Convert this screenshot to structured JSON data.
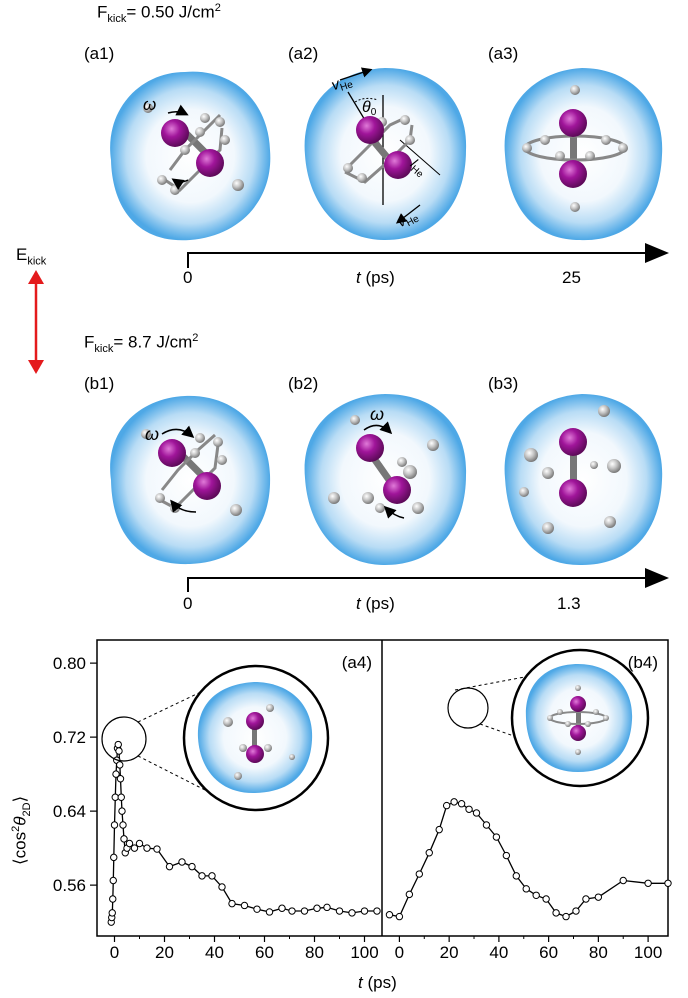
{
  "top_section": {
    "fluence_prefix": "F",
    "fluence_sub": "kick",
    "fluence_value": "= 0.50 J/cm",
    "fluence_sup": "2",
    "panels": [
      "(a1)",
      "(a2)",
      "(a3)"
    ],
    "axis_start": "0",
    "axis_label_t": "t",
    "axis_label_unit": " (ps)",
    "axis_end": "25",
    "a2_labels": {
      "v_he": "v",
      "v_he_sub": "He",
      "theta0": "θ",
      "theta0_sub": "0",
      "l_he": "l",
      "l_he_sub": "He"
    },
    "omega": "ω"
  },
  "energy_arrow": {
    "label": "E",
    "label_sub": "kick"
  },
  "middle_section": {
    "fluence_prefix": "F",
    "fluence_sub": "kick",
    "fluence_value": "= 8.7 J/cm",
    "fluence_sup": "2",
    "panels": [
      "(b1)",
      "(b2)",
      "(b3)"
    ],
    "axis_start": "0",
    "axis_label_t": "t",
    "axis_label_unit": " (ps)",
    "axis_end": "1.3",
    "omega": "ω"
  },
  "colors": {
    "droplet": "#5aaee8",
    "iodine": "#a0159a",
    "helium": "#b8b8b8",
    "axis_arrow": "#000000",
    "energy_arrow": "#e41a1c"
  },
  "chart_data": {
    "type": "scatter",
    "ylabel_prefix": "⟨cos",
    "ylabel_sup": "2",
    "ylabel_theta": "θ",
    "ylabel_sub": "2D",
    "ylabel_suffix": "⟩",
    "xlabel_t": "t",
    "xlabel_unit": " (ps)",
    "ylim": [
      0.505,
      0.825
    ],
    "yticks": [
      "0.56",
      "0.64",
      "0.72",
      "0.80"
    ],
    "yticks_values": [
      0.56,
      0.64,
      0.72,
      0.8
    ],
    "panels": [
      {
        "label": "(a4)",
        "xlim": [
          -7,
          107
        ],
        "xticks": [
          0,
          20,
          40,
          60,
          80,
          100
        ],
        "x": [
          -1.3,
          -1.1,
          -0.9,
          -0.7,
          -0.5,
          -0.3,
          0.0,
          0.3,
          0.6,
          0.9,
          1.2,
          1.5,
          1.8,
          2.1,
          2.4,
          2.7,
          3.0,
          3.4,
          3.8,
          4.3,
          5.0,
          6.0,
          8.0,
          10,
          13,
          17,
          22,
          27,
          31,
          35,
          39,
          43,
          47,
          52,
          57,
          62,
          67,
          71,
          76,
          81,
          85,
          90,
          95,
          100,
          105
        ],
        "y": [
          0.52,
          0.525,
          0.53,
          0.545,
          0.565,
          0.59,
          0.625,
          0.655,
          0.68,
          0.695,
          0.708,
          0.712,
          0.705,
          0.69,
          0.675,
          0.655,
          0.64,
          0.625,
          0.61,
          0.595,
          0.6,
          0.605,
          0.6,
          0.605,
          0.6,
          0.599,
          0.58,
          0.585,
          0.58,
          0.57,
          0.57,
          0.558,
          0.54,
          0.538,
          0.534,
          0.531,
          0.535,
          0.532,
          0.532,
          0.535,
          0.536,
          0.532,
          0.53,
          0.532,
          0.532
        ]
      },
      {
        "label": "(b4)",
        "xlim": [
          -7,
          108
        ],
        "xticks": [
          0,
          20,
          40,
          60,
          80,
          100
        ],
        "x": [
          -4,
          0,
          4,
          8,
          12,
          16,
          19,
          22,
          25,
          28,
          31,
          35,
          39,
          43,
          47,
          51,
          55,
          59,
          63,
          67,
          71,
          75,
          80,
          90,
          100,
          108
        ],
        "y": [
          0.528,
          0.526,
          0.55,
          0.572,
          0.595,
          0.62,
          0.646,
          0.65,
          0.648,
          0.642,
          0.638,
          0.625,
          0.612,
          0.592,
          0.57,
          0.556,
          0.549,
          0.545,
          0.53,
          0.526,
          0.532,
          0.545,
          0.547,
          0.565,
          0.562,
          0.562
        ]
      }
    ]
  }
}
